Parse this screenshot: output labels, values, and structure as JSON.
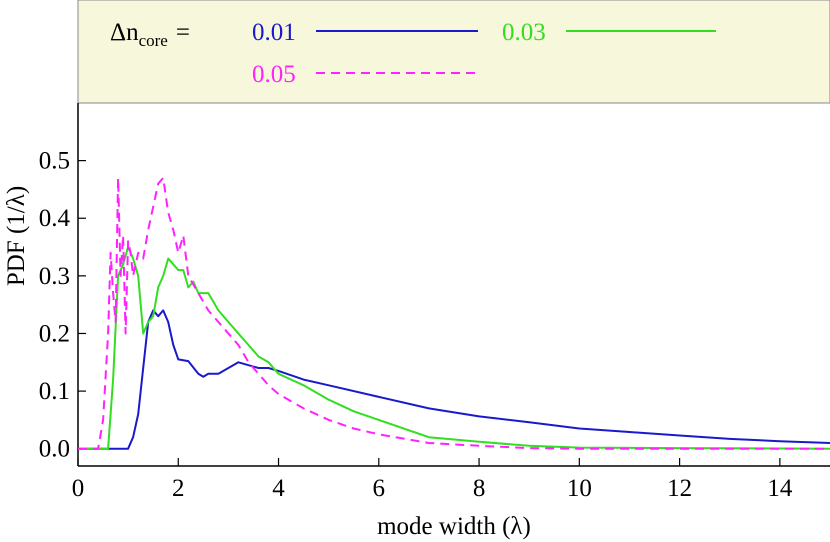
{
  "chart_data": {
    "type": "line",
    "title": "",
    "xlabel": "mode width (λ)",
    "ylabel": "PDF (1/λ)",
    "xlim": [
      0,
      15
    ],
    "ylim": [
      -0.03,
      0.6
    ],
    "x_ticks": [
      0,
      2,
      4,
      6,
      8,
      10,
      12,
      14
    ],
    "y_ticks": [
      0.0,
      0.1,
      0.2,
      0.3,
      0.4,
      0.5
    ],
    "x_tick_labels": [
      "0",
      "2",
      "4",
      "6",
      "8",
      "10",
      "12",
      "14"
    ],
    "y_tick_labels": [
      "0.0",
      "0.1",
      "0.2",
      "0.3",
      "0.4",
      "0.5"
    ],
    "legend": {
      "position": "top",
      "label_main": "Δn",
      "label_sub": "core",
      "label_eq": "="
    },
    "series": [
      {
        "name": "0.01",
        "color": "#1a1acc",
        "style": "solid",
        "x": [
          0,
          1.0,
          1.1,
          1.2,
          1.3,
          1.4,
          1.5,
          1.6,
          1.7,
          1.8,
          1.9,
          2.0,
          2.2,
          2.4,
          2.5,
          2.6,
          2.8,
          3.0,
          3.2,
          3.4,
          3.6,
          3.8,
          4.0,
          4.5,
          5.0,
          6.0,
          7.0,
          8.0,
          9.0,
          10.0,
          11.0,
          12.0,
          13.0,
          14.0,
          15.0
        ],
        "y": [
          0,
          0,
          0.02,
          0.06,
          0.14,
          0.22,
          0.24,
          0.23,
          0.24,
          0.22,
          0.18,
          0.155,
          0.152,
          0.13,
          0.125,
          0.13,
          0.13,
          0.14,
          0.15,
          0.145,
          0.14,
          0.14,
          0.135,
          0.12,
          0.11,
          0.09,
          0.07,
          0.056,
          0.046,
          0.035,
          0.029,
          0.023,
          0.017,
          0.013,
          0.01
        ]
      },
      {
        "name": "0.03",
        "color": "#33dd22",
        "style": "solid",
        "x": [
          0,
          0.6,
          0.7,
          0.8,
          0.9,
          1.0,
          1.05,
          1.1,
          1.2,
          1.3,
          1.4,
          1.5,
          1.6,
          1.7,
          1.8,
          1.9,
          2.0,
          2.1,
          2.2,
          2.3,
          2.4,
          2.6,
          2.8,
          3.0,
          3.2,
          3.4,
          3.6,
          3.8,
          4.0,
          4.5,
          5.0,
          5.5,
          6.0,
          7.0,
          8.0,
          9.0,
          10.0,
          12.0,
          15.0
        ],
        "y": [
          0,
          0,
          0.12,
          0.3,
          0.32,
          0.35,
          0.34,
          0.33,
          0.3,
          0.2,
          0.22,
          0.23,
          0.28,
          0.3,
          0.33,
          0.32,
          0.31,
          0.31,
          0.28,
          0.29,
          0.27,
          0.27,
          0.24,
          0.22,
          0.2,
          0.18,
          0.16,
          0.15,
          0.13,
          0.11,
          0.085,
          0.065,
          0.05,
          0.02,
          0.012,
          0.005,
          0.002,
          0.001,
          0.0
        ]
      },
      {
        "name": "0.05",
        "color": "#ff22ff",
        "style": "dashed",
        "x": [
          0,
          0.4,
          0.5,
          0.6,
          0.65,
          0.7,
          0.75,
          0.8,
          0.85,
          0.9,
          0.95,
          1.0,
          1.05,
          1.1,
          1.2,
          1.3,
          1.4,
          1.5,
          1.6,
          1.7,
          1.8,
          1.9,
          2.0,
          2.1,
          2.2,
          2.4,
          2.6,
          2.8,
          3.0,
          3.2,
          3.4,
          3.6,
          3.8,
          4.0,
          4.5,
          5.0,
          5.5,
          6.0,
          7.0,
          8.0,
          9.0,
          10.0,
          12.0,
          15.0
        ],
        "y": [
          0,
          0,
          0.05,
          0.2,
          0.34,
          0.27,
          0.22,
          0.47,
          0.3,
          0.37,
          0.2,
          0.36,
          0.34,
          0.3,
          0.34,
          0.33,
          0.38,
          0.42,
          0.46,
          0.47,
          0.41,
          0.38,
          0.34,
          0.37,
          0.3,
          0.27,
          0.24,
          0.22,
          0.2,
          0.18,
          0.15,
          0.13,
          0.11,
          0.095,
          0.07,
          0.05,
          0.035,
          0.025,
          0.01,
          0.005,
          0.001,
          0.0,
          0.0,
          0.0
        ]
      }
    ]
  }
}
